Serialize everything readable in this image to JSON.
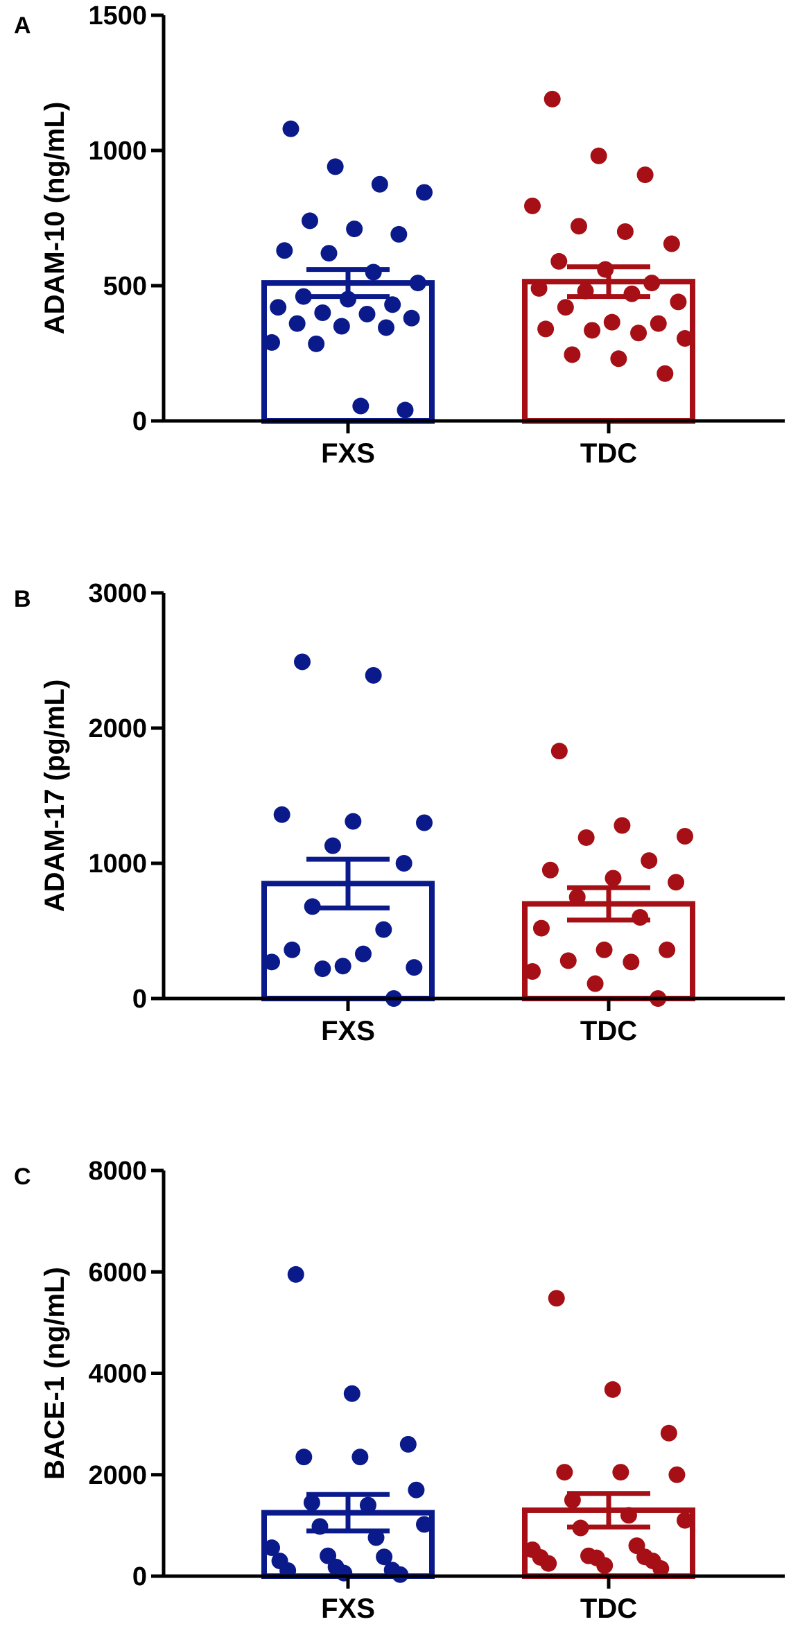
{
  "colors": {
    "FXS": "#0a1a8a",
    "TDC": "#a50f15",
    "axis": "#000000"
  },
  "chart_data": [
    {
      "panel": "A",
      "type": "bar",
      "ylabel": "ADAM-10 (ng/mL)",
      "ylim": [
        0,
        1500
      ],
      "yticks": [
        0,
        500,
        1000,
        1500
      ],
      "categories": [
        "FXS",
        "TDC"
      ],
      "series": [
        {
          "name": "FXS",
          "mean": 510,
          "sem": 50,
          "points": [
            1080,
            940,
            875,
            845,
            740,
            710,
            690,
            630,
            620,
            550,
            510,
            460,
            450,
            430,
            420,
            400,
            395,
            380,
            360,
            350,
            345,
            290,
            285,
            55,
            40
          ]
        },
        {
          "name": "TDC",
          "mean": 515,
          "sem": 55,
          "points": [
            1190,
            980,
            910,
            795,
            720,
            700,
            655,
            590,
            560,
            510,
            490,
            480,
            470,
            440,
            420,
            365,
            360,
            340,
            335,
            325,
            305,
            245,
            230,
            175
          ]
        }
      ]
    },
    {
      "panel": "B",
      "type": "bar",
      "ylabel": "ADAM-17 (pg/mL)",
      "ylim": [
        0,
        3000
      ],
      "yticks": [
        0,
        1000,
        2000,
        3000
      ],
      "categories": [
        "FXS",
        "TDC"
      ],
      "series": [
        {
          "name": "FXS",
          "mean": 850,
          "sem": 180,
          "points": [
            2490,
            2390,
            1360,
            1310,
            1300,
            1130,
            1000,
            680,
            510,
            360,
            330,
            270,
            240,
            230,
            220,
            0
          ]
        },
        {
          "name": "TDC",
          "mean": 700,
          "sem": 120,
          "points": [
            1830,
            1280,
            1200,
            1190,
            1020,
            950,
            890,
            860,
            750,
            600,
            520,
            360,
            360,
            280,
            270,
            200,
            110,
            0
          ]
        }
      ]
    },
    {
      "panel": "C",
      "type": "bar",
      "ylabel": "BACE-1 (ng/mL)",
      "ylim": [
        0,
        8000
      ],
      "yticks": [
        0,
        2000,
        4000,
        6000,
        8000
      ],
      "categories": [
        "FXS",
        "TDC"
      ],
      "series": [
        {
          "name": "FXS",
          "mean": 1250,
          "sem": 360,
          "points": [
            5950,
            3600,
            2600,
            2350,
            2350,
            1700,
            1450,
            1400,
            1020,
            980,
            760,
            560,
            400,
            380,
            300,
            180,
            120,
            110,
            60,
            30
          ]
        },
        {
          "name": "TDC",
          "mean": 1300,
          "sem": 330,
          "points": [
            5480,
            3680,
            2820,
            2050,
            2050,
            2000,
            1500,
            1200,
            1100,
            950,
            600,
            520,
            400,
            380,
            370,
            360,
            300,
            250,
            210,
            150
          ]
        }
      ]
    }
  ]
}
